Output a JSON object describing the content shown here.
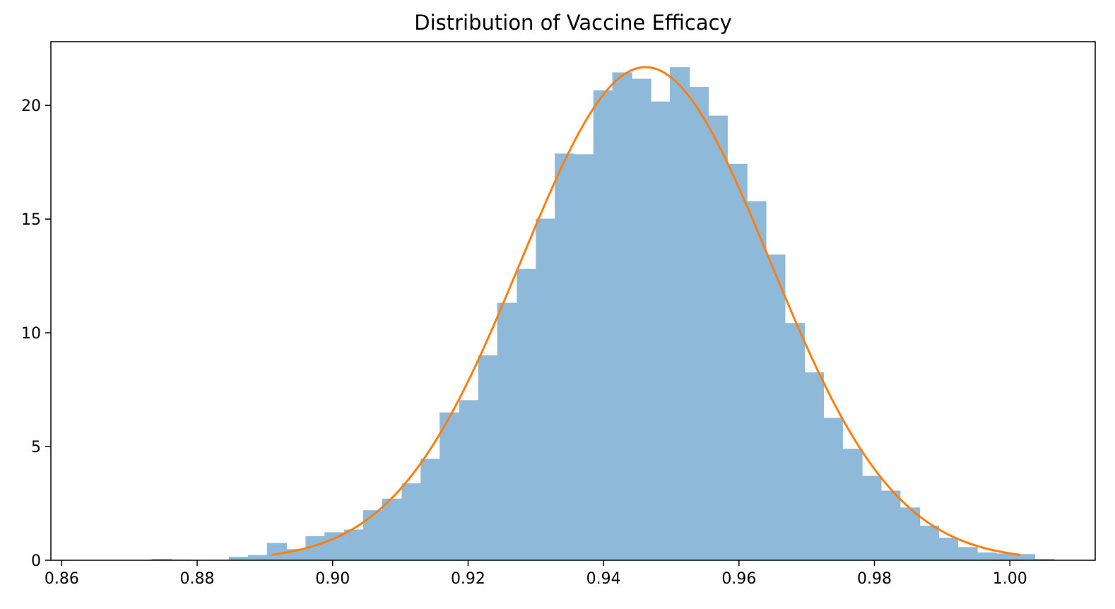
{
  "chart_data": {
    "type": "bar",
    "subtype": "histogram-with-fit",
    "title": "Distribution of Vaccine Efficacy",
    "xlabel": "",
    "ylabel": "",
    "xlim": [
      0.8584,
      1.0126
    ],
    "ylim": [
      0,
      22.8
    ],
    "grid": false,
    "legend": "none",
    "x_ticks": [
      0.86,
      0.88,
      0.9,
      0.92,
      0.94,
      0.96,
      0.98,
      1.0
    ],
    "x_tick_labels": [
      "0.86",
      "0.88",
      "0.90",
      "0.92",
      "0.94",
      "0.96",
      "0.98",
      "1.00"
    ],
    "y_ticks": [
      0,
      5,
      10,
      15,
      20
    ],
    "y_tick_labels": [
      "0",
      "5",
      "10",
      "15",
      "20"
    ],
    "bin_edges": [
      0.8733,
      0.8762,
      0.879,
      0.8818,
      0.8847,
      0.8875,
      0.8903,
      0.8932,
      0.896,
      0.8988,
      0.9017,
      0.9045,
      0.9073,
      0.9102,
      0.913,
      0.9158,
      0.9187,
      0.9215,
      0.9243,
      0.9272,
      0.93,
      0.9328,
      0.9357,
      0.9385,
      0.9413,
      0.9442,
      0.947,
      0.9498,
      0.9527,
      0.9555,
      0.9583,
      0.9612,
      0.964,
      0.9668,
      0.9697,
      0.9725,
      0.9753,
      0.9782,
      0.981,
      0.9838,
      0.9867,
      0.9895,
      0.9923,
      0.9952,
      0.998,
      1.0008,
      1.0037,
      1.0065
    ],
    "bin_values": [
      0.06,
      0.03,
      0.01,
      0.02,
      0.15,
      0.23,
      0.76,
      0.49,
      1.06,
      1.23,
      1.35,
      2.2,
      2.71,
      3.38,
      4.46,
      6.5,
      7.04,
      9.01,
      11.32,
      12.81,
      15.02,
      17.88,
      17.85,
      20.66,
      21.45,
      21.17,
      20.17,
      21.68,
      20.81,
      19.55,
      17.43,
      15.78,
      13.44,
      10.43,
      8.26,
      6.26,
      4.9,
      3.71,
      3.06,
      2.32,
      1.52,
      0.99,
      0.58,
      0.34,
      0.3,
      0.27,
      0.06
    ],
    "bar_color": "#8fb9d9",
    "fit_curve": {
      "type": "line",
      "distribution": "normal",
      "mean": 0.9462,
      "std": 0.0184,
      "x_range": [
        0.891,
        1.0015
      ],
      "color": "#ff7f0e"
    }
  }
}
